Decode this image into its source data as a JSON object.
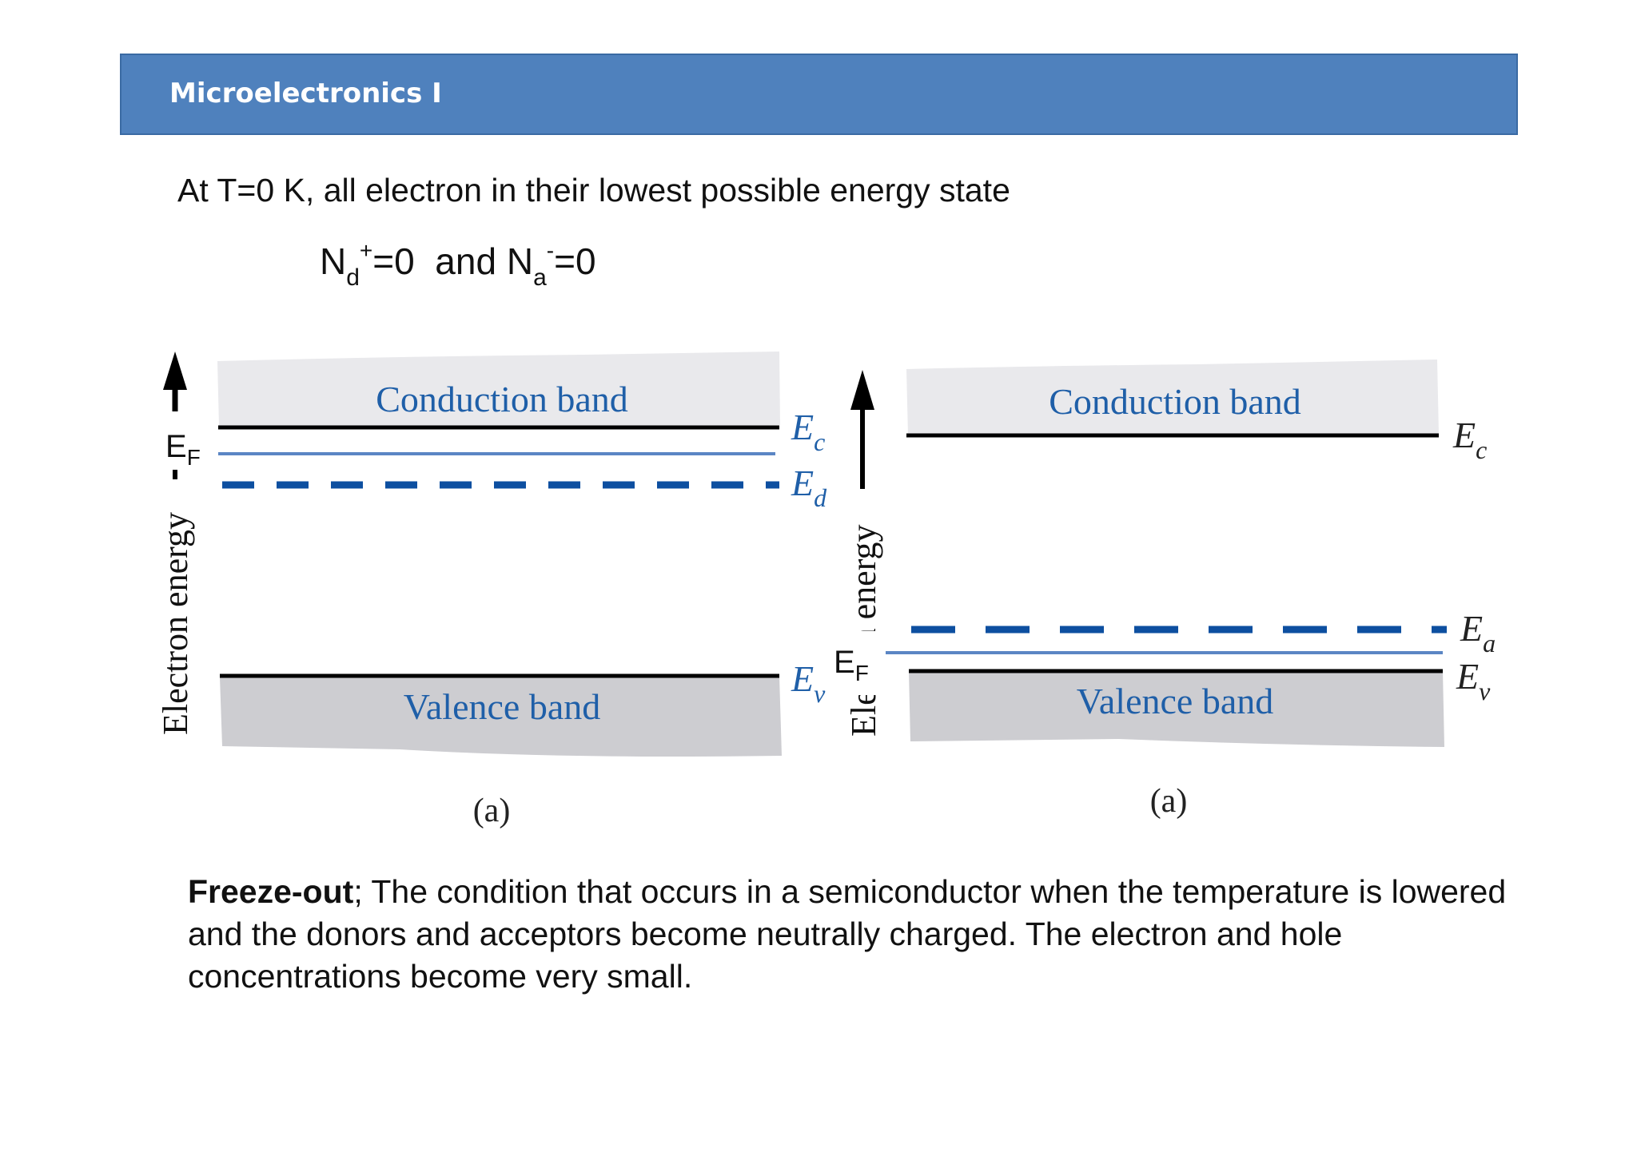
{
  "header": {
    "title": "Microelectronics I"
  },
  "intro": {
    "statement": "At T=0 K, all electron in their lowest possible energy state",
    "equation": {
      "nd": "N",
      "nd_sub": "d",
      "nd_sup": "+",
      "nd_val": "=0",
      "and": "  and ",
      "na": "N",
      "na_sub": "a",
      "na_sup": "-",
      "na_val": "=0"
    }
  },
  "diagrams": {
    "left": {
      "conduction_band": "Conduction band",
      "valence_band": "Valence band",
      "axis_label": "Electron energy",
      "ef": "E",
      "ef_sub": "F",
      "ec": "E",
      "ec_sub": "c",
      "ed": "E",
      "ed_sub": "d",
      "ev": "E",
      "ev_sub": "v",
      "caption": "(a)"
    },
    "right": {
      "conduction_band": "Conduction band",
      "valence_band": "Valence band",
      "axis_label": "Ele     n energy",
      "ef": "E",
      "ef_sub": "F",
      "ec": "E",
      "ec_sub": "c",
      "ea": "E",
      "ea_sub": "a",
      "ev": "E",
      "ev_sub": "v",
      "caption": "(a)"
    }
  },
  "definition": {
    "term": "Freeze-out",
    "text": "; The condition that occurs in a semiconductor when the temperature is lowered and the donors and acceptors become neutrally charged. The electron and hole concentrations become very small."
  },
  "colors": {
    "header": "#4f81bd",
    "band_label": "#1f5fa8",
    "dashed_level": "#0d4fa0",
    "fermi_line": "#5b86c4"
  }
}
